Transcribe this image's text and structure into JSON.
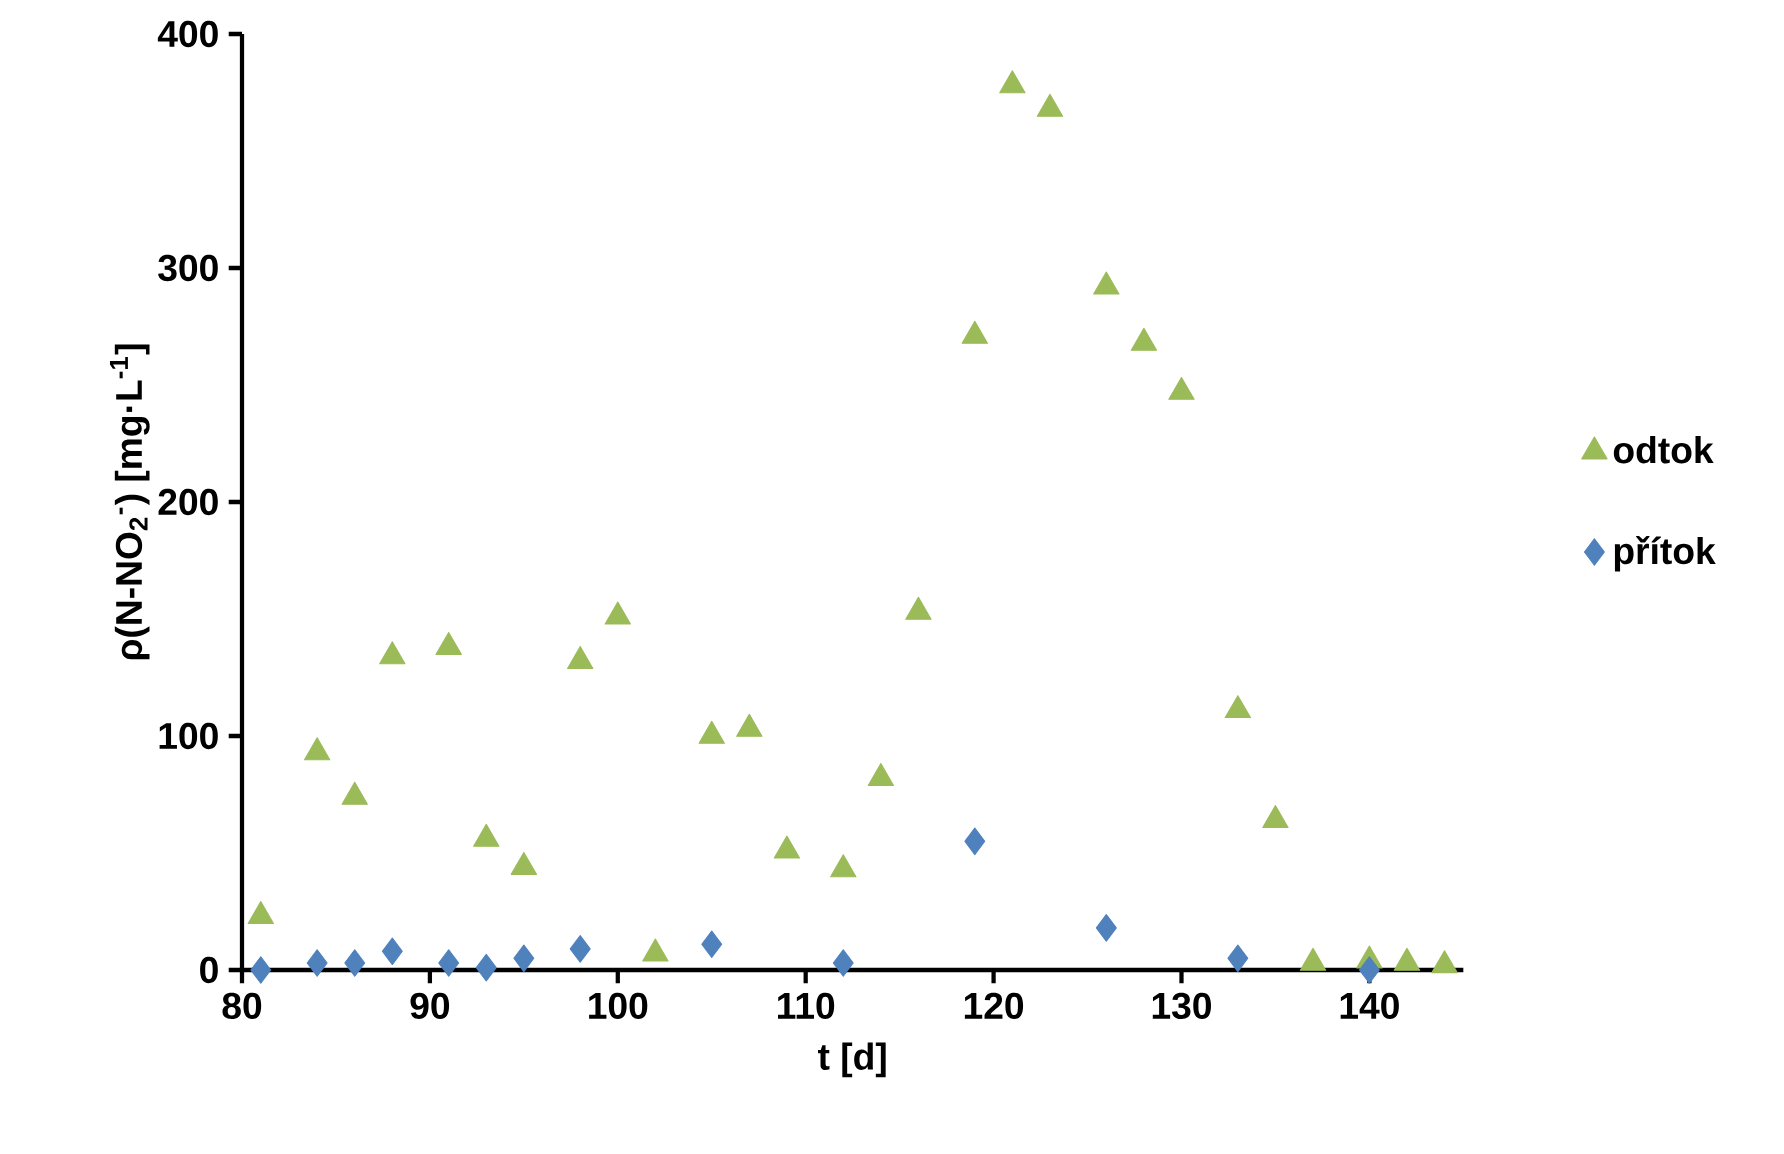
{
  "chart_data": {
    "type": "scatter",
    "xlabel": "t [d]",
    "ylabel": "ρ(N-NO$_{2}$$^{-}$) [mg·L$^{-1}$]",
    "xlim": [
      80,
      145
    ],
    "xticks": [
      80,
      90,
      100,
      110,
      120,
      130,
      140
    ],
    "ylim": [
      0,
      400
    ],
    "yticks": [
      0,
      100,
      200,
      300,
      400
    ],
    "legend": "right",
    "series": [
      {
        "name": "odtok",
        "color": "#9bbb59",
        "marker": "triangle",
        "x": [
          81,
          84,
          86,
          88,
          91,
          93,
          95,
          98,
          100,
          102,
          105,
          107,
          109,
          112,
          114,
          116,
          119,
          121,
          123,
          126,
          128,
          130,
          133,
          135,
          137,
          140,
          142,
          144
        ],
        "values": [
          23,
          93,
          74,
          134,
          138,
          56,
          44,
          132,
          151,
          7,
          100,
          103,
          51,
          43,
          82,
          153,
          271,
          378,
          368,
          292,
          268,
          247,
          111,
          64,
          3,
          4,
          3,
          2
        ]
      },
      {
        "name": "přítok",
        "color": "#4f81bd",
        "marker": "diamond",
        "x": [
          81,
          84,
          86,
          88,
          91,
          93,
          95,
          98,
          105,
          112,
          119,
          126,
          133,
          140
        ],
        "values": [
          0,
          3,
          3,
          8,
          3,
          1,
          5,
          9,
          11,
          3,
          55,
          18,
          5,
          0
        ]
      }
    ]
  }
}
